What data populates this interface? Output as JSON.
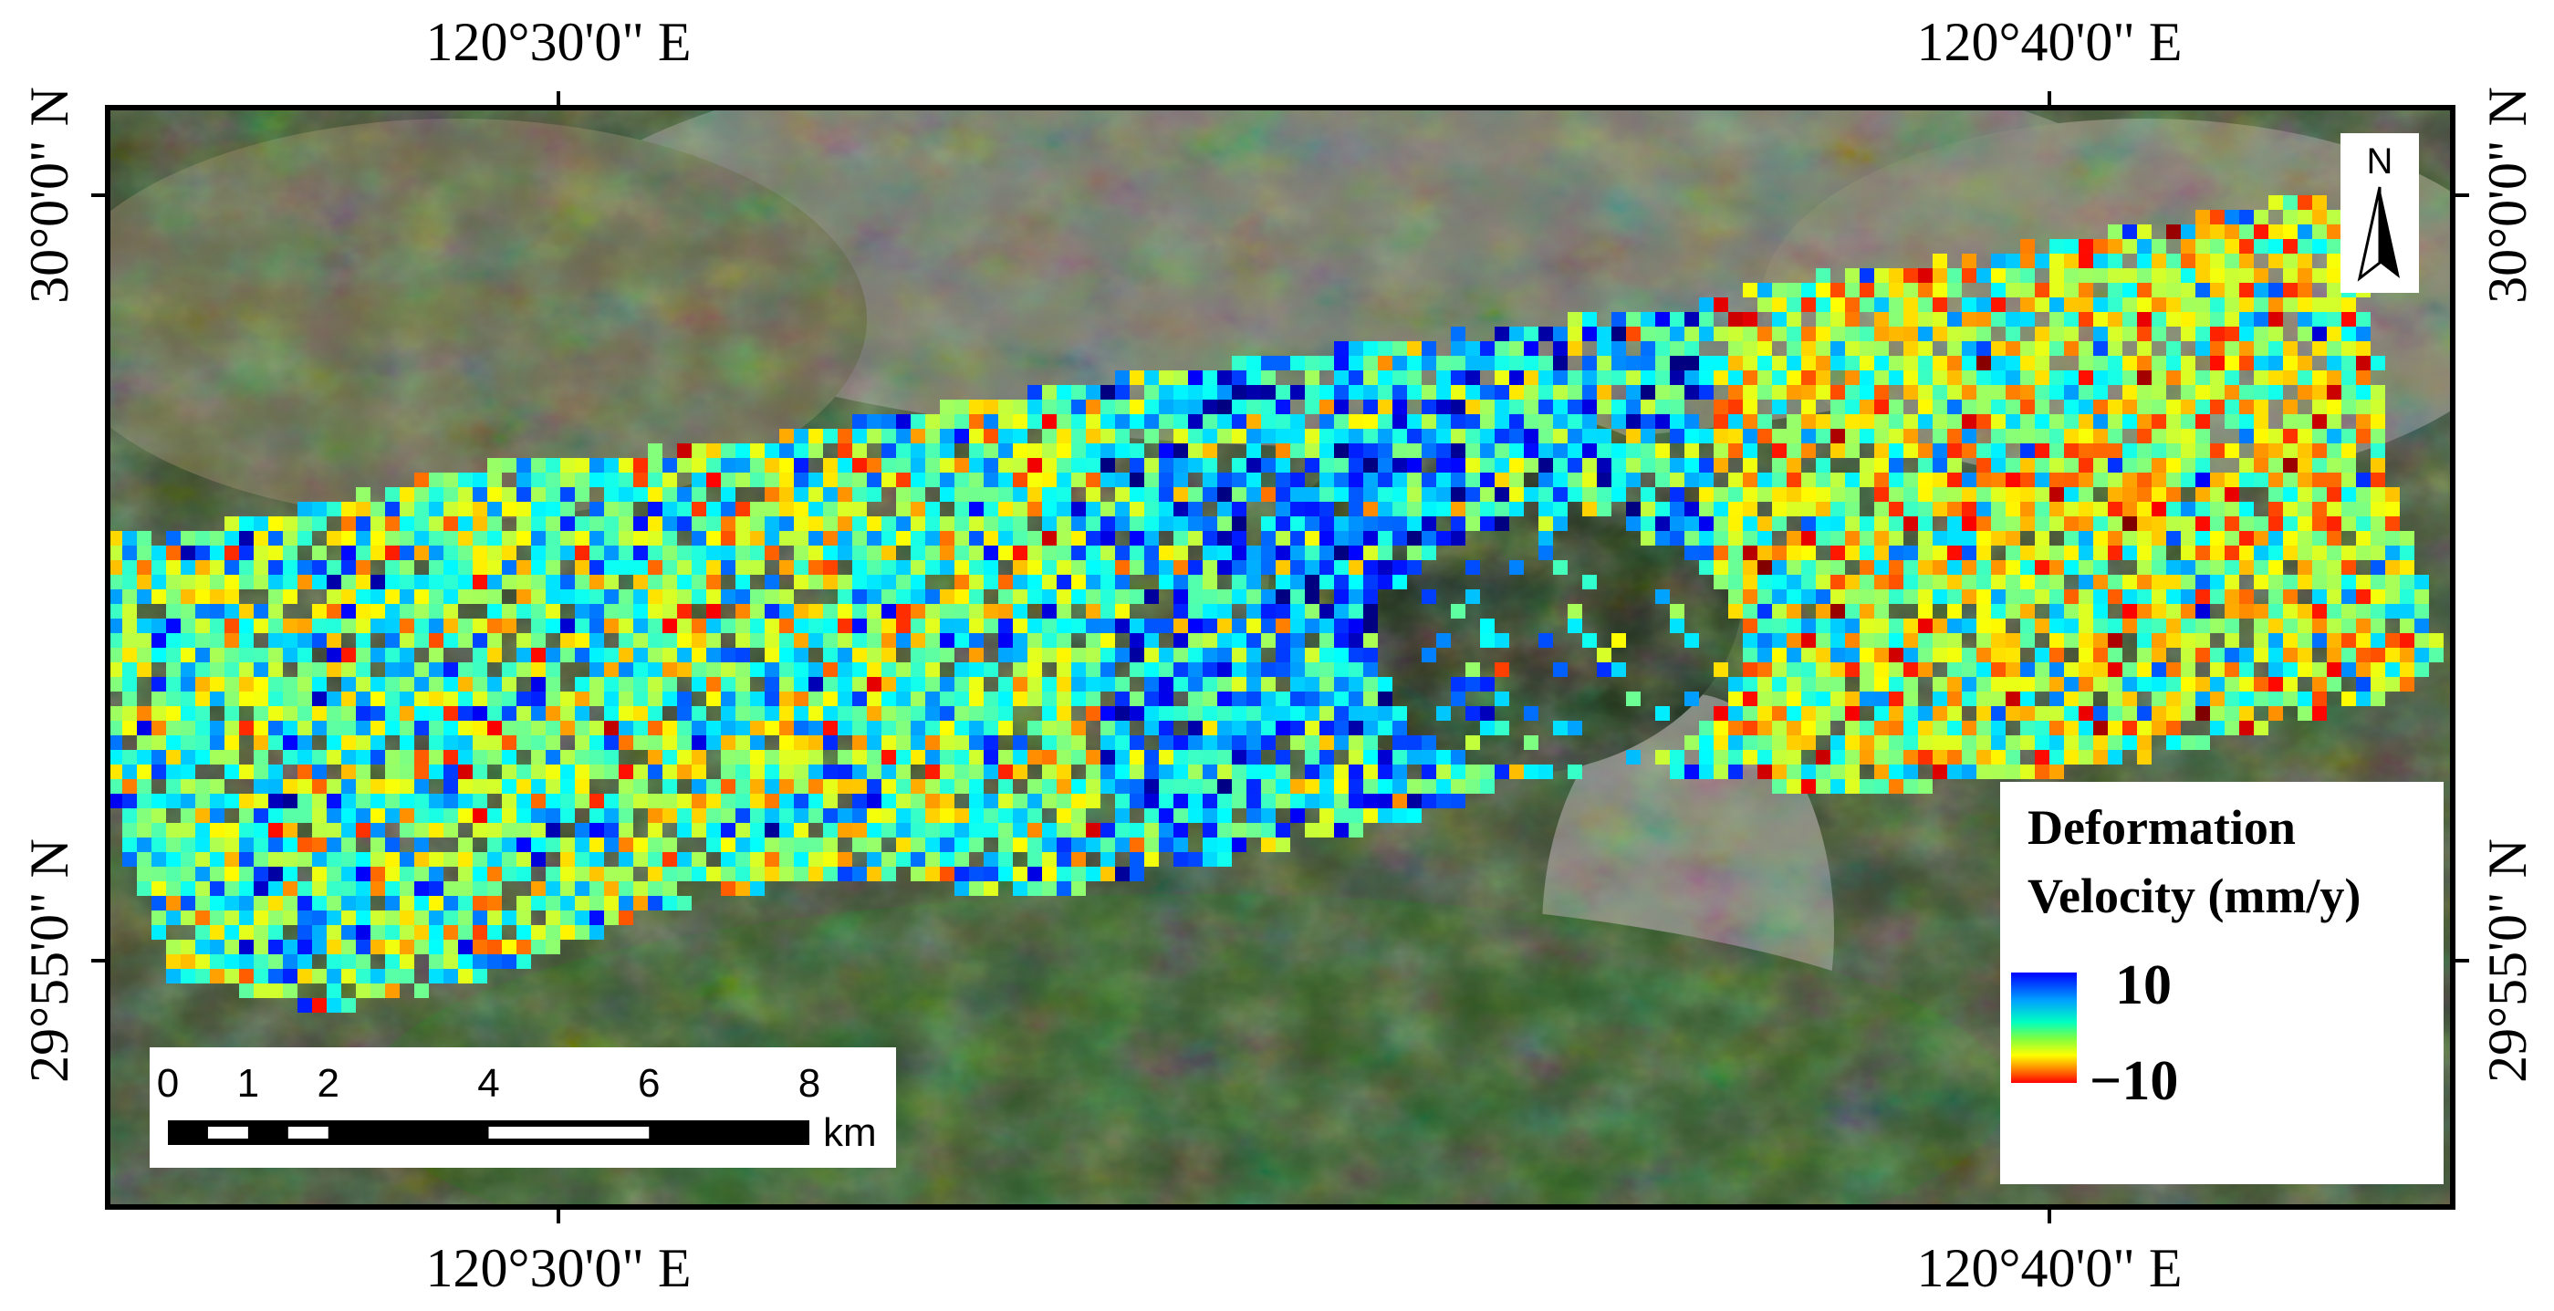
{
  "map": {
    "lon_labels": [
      "120°30'0\" E",
      "120°40'0\" E"
    ],
    "lat_labels": [
      "30°0'0\" N",
      "29°55'0\" N"
    ],
    "north_arrow": "N",
    "legend": {
      "title_lines": [
        "Deformation",
        "Velocity (mm/y)"
      ],
      "max_label": "10",
      "min_label": "−10"
    },
    "scale_bar": {
      "ticks": [
        0,
        1,
        2,
        4,
        6,
        8
      ],
      "unit": "km"
    }
  }
}
